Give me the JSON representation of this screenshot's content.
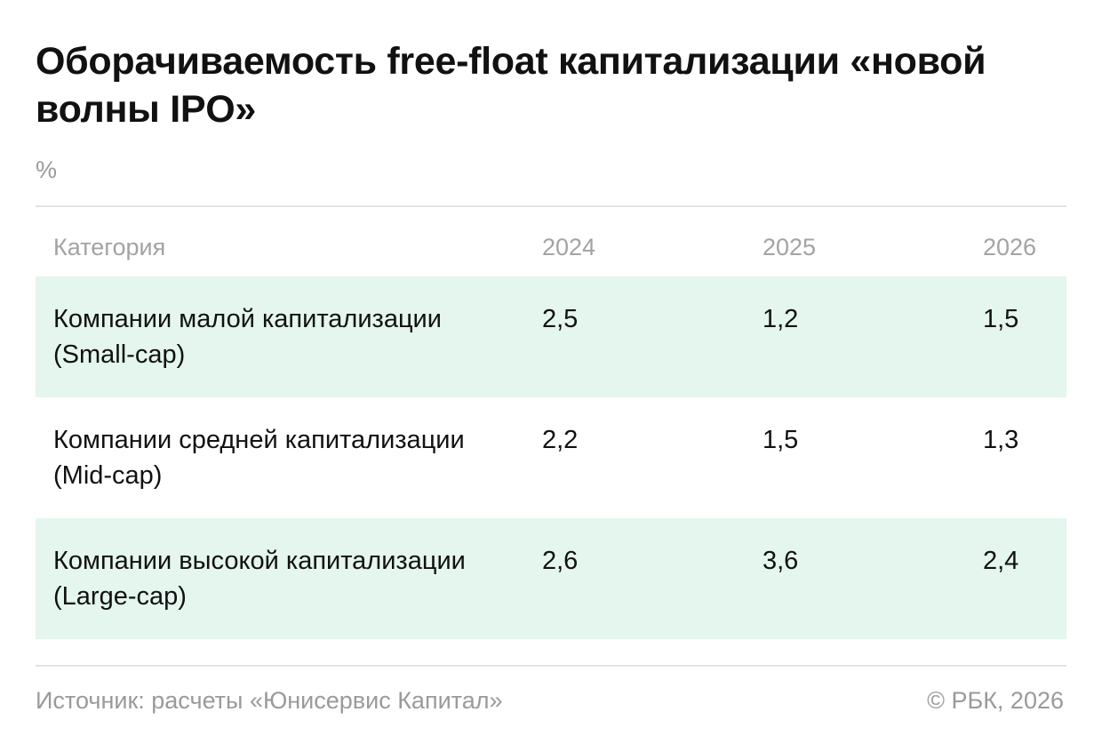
{
  "title": "Оборачиваемость free-float капитализации «новой волны IPO»",
  "unit": "%",
  "table": {
    "headers": [
      "Категория",
      "2024",
      "2025",
      "2026"
    ],
    "rows": [
      {
        "category": "Компании малой капитализации (Small-cap)",
        "values": [
          "2,5",
          "1,2",
          "1,5"
        ]
      },
      {
        "category": "Компании средней капитализации (Mid-cap)",
        "values": [
          "2,2",
          "1,5",
          "1,3"
        ]
      },
      {
        "category": "Компании высокой капитализации (Large-cap)",
        "values": [
          "2,6",
          "3,6",
          "2,4"
        ]
      }
    ]
  },
  "footer": {
    "source": "Источник: расчеты «Юнисервис Капитал»",
    "copyright": "© РБК, 2026"
  },
  "colors": {
    "row_shade": "#e4f6ee",
    "muted_text": "#9a9a9a",
    "rule": "#e3e3e3"
  }
}
